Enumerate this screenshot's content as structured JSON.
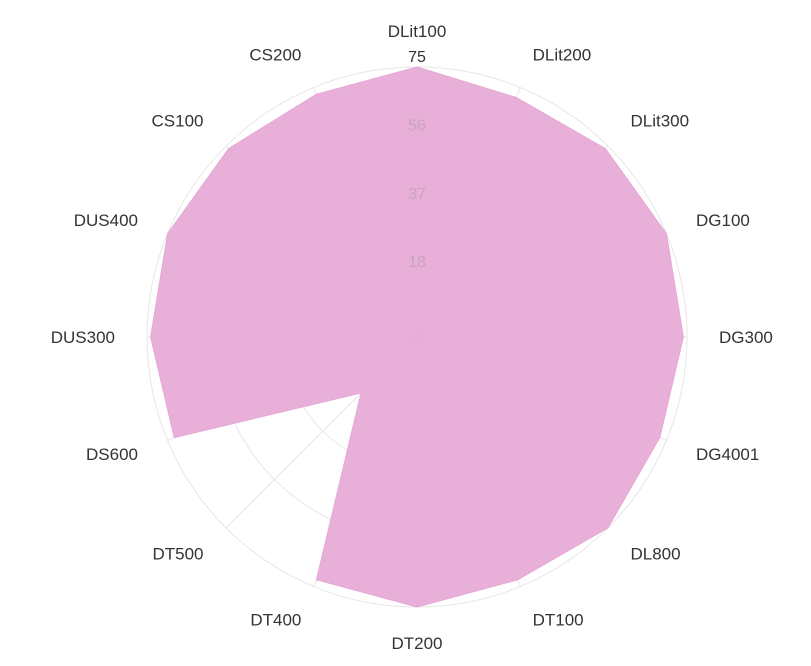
{
  "chart_data": {
    "type": "radar",
    "axes": [
      "DLit100",
      "DLit200",
      "DLit300",
      "DG100",
      "DG300",
      "DG4001",
      "DL800",
      "DT100",
      "DT200",
      "DT400",
      "DT500",
      "DS600",
      "DUS300",
      "DUS400",
      "CS100",
      "CS200"
    ],
    "ticks": [
      75,
      56,
      37,
      18
    ],
    "range": [
      0,
      75
    ],
    "grid": true,
    "series": [
      {
        "values": [
          75,
          72,
          74,
          75,
          74,
          73,
          75,
          73,
          75,
          73,
          22,
          73,
          74,
          75,
          74,
          73
        ],
        "color": "#e6a8d6"
      }
    ]
  }
}
